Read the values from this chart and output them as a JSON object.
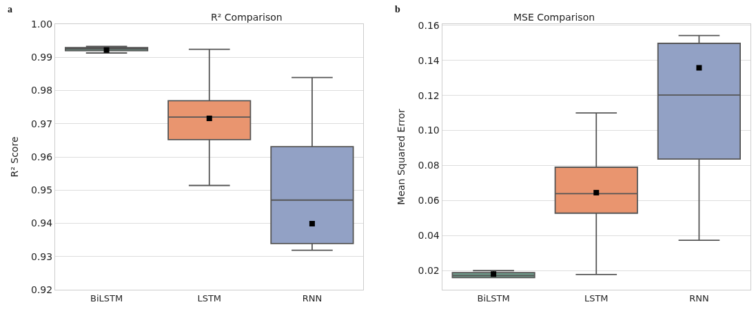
{
  "chart_data": [
    {
      "type": "box",
      "title": "R² Comparison",
      "ylabel": "R² Score",
      "annotations": [
        "a"
      ],
      "categories": [
        "BiLSTM",
        "LSTM",
        "RNN"
      ],
      "colors": [
        "#6f9a8a",
        "#e9956f",
        "#92a1c5"
      ],
      "boxes": [
        {
          "low": 0.9913,
          "q1": 0.992,
          "median": 0.9925,
          "q3": 0.9929,
          "high": 0.9933,
          "mean": 0.9922
        },
        {
          "low": 0.9514,
          "q1": 0.9652,
          "median": 0.972,
          "q3": 0.9769,
          "high": 0.9924,
          "mean": 0.9716
        },
        {
          "low": 0.9319,
          "q1": 0.9339,
          "median": 0.947,
          "q3": 0.9631,
          "high": 0.9839,
          "mean": 0.9399
        }
      ],
      "ylim": [
        0.92,
        1.0
      ],
      "yticks": [
        0.92,
        0.93,
        0.94,
        0.95,
        0.96,
        0.97,
        0.98,
        0.99,
        {
          "value": 1.0,
          "label": "1.00"
        }
      ],
      "grid": "y",
      "marker": "square"
    },
    {
      "type": "box",
      "title": "MSE Comparison",
      "ylabel": "Mean Squared Error",
      "annotations": [
        "b"
      ],
      "categories": [
        "BiLSTM",
        "LSTM",
        "RNN"
      ],
      "colors": [
        "#6f9a8a",
        "#e9956f",
        "#92a1c5"
      ],
      "boxes": [
        {
          "low": 0.016,
          "q1": 0.016,
          "median": 0.0172,
          "q3": 0.0189,
          "high": 0.02,
          "mean": 0.018
        },
        {
          "low": 0.0178,
          "q1": 0.0528,
          "median": 0.0639,
          "q3": 0.079,
          "high": 0.11,
          "mean": 0.0645
        },
        {
          "low": 0.0373,
          "q1": 0.0837,
          "median": 0.1202,
          "q3": 0.1497,
          "high": 0.1542,
          "mean": 0.1358
        }
      ],
      "ylim": [
        0.0091,
        0.1607
      ],
      "yticks": [
        0.02,
        0.04,
        0.06,
        0.08,
        {
          "value": 0.1,
          "label": "0.10"
        },
        0.12,
        0.14,
        0.16
      ],
      "grid": "y",
      "marker": "square"
    }
  ]
}
